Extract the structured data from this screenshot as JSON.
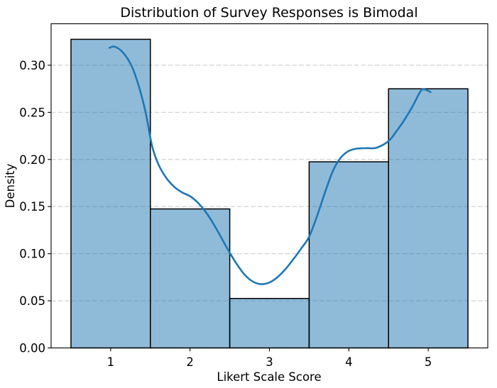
{
  "chart_data": {
    "type": "bar",
    "subtype": "histogram-with-kde",
    "title": "Distribution of Survey Responses is Bimodal",
    "xlabel": "Likert Scale Score",
    "ylabel": "Density",
    "stat": "density",
    "bin_width": 1,
    "categories": [
      1,
      2,
      3,
      4,
      5
    ],
    "values": [
      0.3275,
      0.1475,
      0.0525,
      0.1975,
      0.275
    ],
    "x_ticks": [
      {
        "value": 1,
        "label": "1"
      },
      {
        "value": 2,
        "label": "2"
      },
      {
        "value": 3,
        "label": "3"
      },
      {
        "value": 4,
        "label": "4"
      },
      {
        "value": 5,
        "label": "5"
      }
    ],
    "y_ticks": [
      {
        "value": 0.0,
        "label": "0.00"
      },
      {
        "value": 0.05,
        "label": "0.05"
      },
      {
        "value": 0.1,
        "label": "0.10"
      },
      {
        "value": 0.15,
        "label": "0.15"
      },
      {
        "value": 0.2,
        "label": "0.20"
      },
      {
        "value": 0.25,
        "label": "0.25"
      },
      {
        "value": 0.3,
        "label": "0.30"
      }
    ],
    "xlim": [
      0.25,
      5.75
    ],
    "ylim": [
      0,
      0.344
    ],
    "grid": "horizontal-dashed",
    "legend": null,
    "kde_points": [
      [
        0.985,
        0.3185
      ],
      [
        1.05,
        0.3197
      ],
      [
        1.15,
        0.314
      ],
      [
        1.26,
        0.3
      ],
      [
        1.35,
        0.279
      ],
      [
        1.44,
        0.25
      ],
      [
        1.52,
        0.215
      ],
      [
        1.6,
        0.195
      ],
      [
        1.7,
        0.1805
      ],
      [
        1.8,
        0.171
      ],
      [
        1.9,
        0.165
      ],
      [
        2.0,
        0.161
      ],
      [
        2.1,
        0.154
      ],
      [
        2.2,
        0.144
      ],
      [
        2.3,
        0.131
      ],
      [
        2.4,
        0.116
      ],
      [
        2.5,
        0.101
      ],
      [
        2.6,
        0.0875
      ],
      [
        2.7,
        0.0765
      ],
      [
        2.8,
        0.07
      ],
      [
        2.9,
        0.0677
      ],
      [
        3.0,
        0.0695
      ],
      [
        3.1,
        0.075
      ],
      [
        3.2,
        0.0835
      ],
      [
        3.3,
        0.094
      ],
      [
        3.4,
        0.1055
      ],
      [
        3.5,
        0.118
      ],
      [
        3.6,
        0.14
      ],
      [
        3.7,
        0.165
      ],
      [
        3.8,
        0.188
      ],
      [
        3.9,
        0.202
      ],
      [
        4.0,
        0.209
      ],
      [
        4.1,
        0.2115
      ],
      [
        4.22,
        0.212
      ],
      [
        4.35,
        0.2125
      ],
      [
        4.5,
        0.2195
      ],
      [
        4.6,
        0.23
      ],
      [
        4.7,
        0.242
      ],
      [
        4.8,
        0.256
      ],
      [
        4.9,
        0.272
      ],
      [
        4.95,
        0.2743
      ],
      [
        5.03,
        0.2715
      ]
    ],
    "colors": {
      "bar_fill": "#1f77b4",
      "bar_fill_alpha": 0.5,
      "bar_edge": "#000000",
      "kde_line": "#1f77b4",
      "grid": "#cccccc",
      "spine": "#000000",
      "text": "#000000"
    }
  }
}
